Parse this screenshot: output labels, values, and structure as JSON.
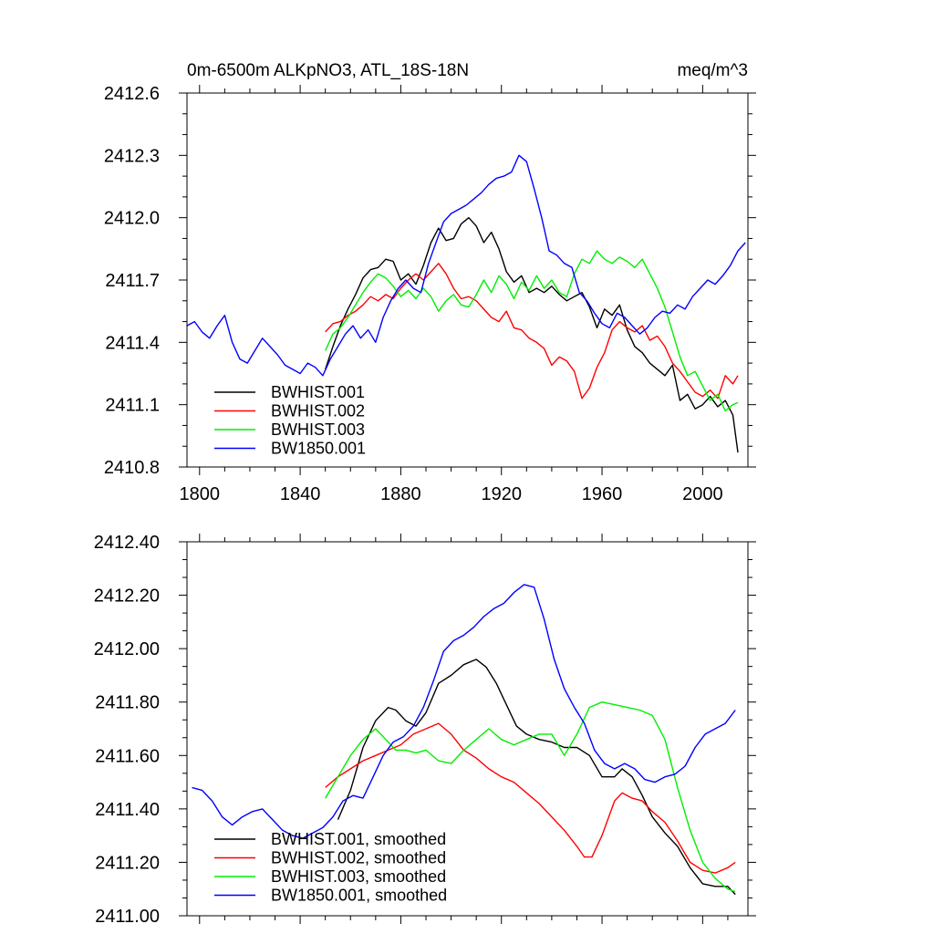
{
  "colors": {
    "BWHIST.001": "#000000",
    "BWHIST.002": "#ff0000",
    "BWHIST.003": "#00ee00",
    "BW1850.001": "#0000ff"
  },
  "chart_data": [
    {
      "type": "line",
      "title": "0m-6500m ALKpNO3, ATL_18S-18N",
      "units": "meq/m^3",
      "xlabel": "",
      "ylabel": "",
      "xlim": [
        1795,
        2018
      ],
      "ylim": [
        2410.8,
        2412.6
      ],
      "xticks": [
        1800,
        1840,
        1880,
        1920,
        1960,
        2000
      ],
      "xtick_labels": [
        "1800",
        "1840",
        "1880",
        "1920",
        "1960",
        "2000"
      ],
      "yticks": [
        2410.8,
        2411.1,
        2411.4,
        2411.7,
        2412.0,
        2412.3,
        2412.6
      ],
      "ytick_labels": [
        "2410.8",
        "2411.1",
        "2411.4",
        "2411.7",
        "2412.0",
        "2412.3",
        "2412.6"
      ],
      "legend": [
        "BWHIST.001",
        "BWHIST.002",
        "BWHIST.003",
        "BW1850.001"
      ],
      "legend_position": "bottom-left",
      "series": [
        {
          "name": "BWHIST.001",
          "x": [
            1850,
            1853,
            1856,
            1859,
            1862,
            1865,
            1868,
            1871,
            1874,
            1877,
            1880,
            1883,
            1886,
            1889,
            1892,
            1895,
            1898,
            1901,
            1904,
            1907,
            1910,
            1913,
            1916,
            1919,
            1922,
            1925,
            1928,
            1931,
            1934,
            1937,
            1940,
            1943,
            1946,
            1949,
            1952,
            1955,
            1958,
            1961,
            1964,
            1967,
            1970,
            1973,
            1976,
            1979,
            1982,
            1985,
            1988,
            1991,
            1994,
            1997,
            2000,
            2003,
            2006,
            2009,
            2012,
            2014
          ],
          "values": [
            2411.27,
            2411.38,
            2411.48,
            2411.56,
            2411.63,
            2411.71,
            2411.75,
            2411.76,
            2411.8,
            2411.79,
            2411.7,
            2411.73,
            2411.68,
            2411.77,
            2411.88,
            2411.95,
            2411.89,
            2411.9,
            2411.97,
            2412.0,
            2411.96,
            2411.88,
            2411.93,
            2411.85,
            2411.74,
            2411.69,
            2411.72,
            2411.64,
            2411.66,
            2411.64,
            2411.67,
            2411.63,
            2411.6,
            2411.62,
            2411.64,
            2411.57,
            2411.47,
            2411.56,
            2411.53,
            2411.58,
            2411.46,
            2411.38,
            2411.35,
            2411.3,
            2411.27,
            2411.24,
            2411.29,
            2411.12,
            2411.15,
            2411.08,
            2411.1,
            2411.14,
            2411.09,
            2411.12,
            2411.05,
            2410.87
          ]
        },
        {
          "name": "BWHIST.002",
          "x": [
            1850,
            1853,
            1856,
            1859,
            1862,
            1865,
            1868,
            1871,
            1874,
            1877,
            1880,
            1883,
            1886,
            1889,
            1892,
            1895,
            1898,
            1901,
            1904,
            1907,
            1910,
            1913,
            1916,
            1919,
            1922,
            1925,
            1928,
            1931,
            1934,
            1937,
            1940,
            1943,
            1946,
            1949,
            1952,
            1955,
            1958,
            1961,
            1964,
            1967,
            1970,
            1973,
            1976,
            1979,
            1982,
            1985,
            1988,
            1991,
            1994,
            1997,
            2000,
            2003,
            2006,
            2009,
            2012,
            2014
          ],
          "values": [
            2411.45,
            2411.49,
            2411.5,
            2411.53,
            2411.55,
            2411.58,
            2411.62,
            2411.6,
            2411.63,
            2411.61,
            2411.66,
            2411.7,
            2411.73,
            2411.7,
            2411.74,
            2411.78,
            2411.73,
            2411.66,
            2411.61,
            2411.62,
            2411.6,
            2411.56,
            2411.52,
            2411.5,
            2411.55,
            2411.47,
            2411.46,
            2411.42,
            2411.4,
            2411.37,
            2411.29,
            2411.33,
            2411.31,
            2411.26,
            2411.13,
            2411.18,
            2411.28,
            2411.35,
            2411.46,
            2411.5,
            2411.47,
            2411.45,
            2411.48,
            2411.41,
            2411.43,
            2411.38,
            2411.3,
            2411.26,
            2411.21,
            2411.16,
            2411.14,
            2411.17,
            2411.13,
            2411.24,
            2411.2,
            2411.24
          ]
        },
        {
          "name": "BWHIST.003",
          "x": [
            1850,
            1853,
            1856,
            1859,
            1862,
            1865,
            1868,
            1871,
            1874,
            1877,
            1880,
            1883,
            1886,
            1889,
            1892,
            1895,
            1898,
            1901,
            1904,
            1907,
            1910,
            1913,
            1916,
            1919,
            1922,
            1925,
            1928,
            1931,
            1934,
            1937,
            1940,
            1943,
            1946,
            1949,
            1952,
            1955,
            1958,
            1961,
            1964,
            1967,
            1970,
            1973,
            1976,
            1979,
            1982,
            1985,
            1988,
            1991,
            1994,
            1997,
            2000,
            2003,
            2006,
            2009,
            2012,
            2014
          ],
          "values": [
            2411.36,
            2411.44,
            2411.47,
            2411.52,
            2411.58,
            2411.64,
            2411.69,
            2411.73,
            2411.71,
            2411.67,
            2411.62,
            2411.65,
            2411.61,
            2411.66,
            2411.62,
            2411.55,
            2411.6,
            2411.63,
            2411.58,
            2411.57,
            2411.63,
            2411.7,
            2411.64,
            2411.72,
            2411.68,
            2411.61,
            2411.69,
            2411.65,
            2411.72,
            2411.66,
            2411.7,
            2411.64,
            2411.62,
            2411.73,
            2411.8,
            2411.78,
            2411.84,
            2411.8,
            2411.78,
            2411.81,
            2411.79,
            2411.76,
            2411.8,
            2411.73,
            2411.66,
            2411.57,
            2411.45,
            2411.33,
            2411.24,
            2411.26,
            2411.19,
            2411.12,
            2411.15,
            2411.07,
            2411.1,
            2411.11
          ]
        },
        {
          "name": "BW1850.001",
          "x": [
            1795,
            1798,
            1801,
            1804,
            1807,
            1810,
            1813,
            1816,
            1819,
            1822,
            1825,
            1828,
            1831,
            1834,
            1837,
            1840,
            1843,
            1846,
            1849,
            1852,
            1855,
            1858,
            1861,
            1864,
            1867,
            1870,
            1873,
            1876,
            1879,
            1882,
            1885,
            1888,
            1891,
            1894,
            1897,
            1900,
            1903,
            1906,
            1909,
            1912,
            1915,
            1918,
            1921,
            1924,
            1927,
            1930,
            1933,
            1936,
            1939,
            1942,
            1945,
            1948,
            1951,
            1954,
            1957,
            1960,
            1963,
            1966,
            1969,
            1972,
            1975,
            1978,
            1981,
            1984,
            1987,
            1990,
            1993,
            1996,
            1999,
            2002,
            2005,
            2008,
            2011,
            2014,
            2017
          ],
          "values": [
            2411.48,
            2411.5,
            2411.45,
            2411.42,
            2411.48,
            2411.53,
            2411.4,
            2411.32,
            2411.3,
            2411.36,
            2411.42,
            2411.38,
            2411.34,
            2411.29,
            2411.27,
            2411.25,
            2411.3,
            2411.28,
            2411.24,
            2411.32,
            2411.38,
            2411.44,
            2411.48,
            2411.42,
            2411.46,
            2411.4,
            2411.52,
            2411.6,
            2411.66,
            2411.7,
            2411.66,
            2411.64,
            2411.78,
            2411.88,
            2411.98,
            2412.02,
            2412.04,
            2412.06,
            2412.09,
            2412.12,
            2412.16,
            2412.19,
            2412.2,
            2412.22,
            2412.3,
            2412.27,
            2412.14,
            2412.0,
            2411.84,
            2411.82,
            2411.78,
            2411.76,
            2411.64,
            2411.6,
            2411.54,
            2411.49,
            2411.47,
            2411.54,
            2411.52,
            2411.48,
            2411.44,
            2411.47,
            2411.52,
            2411.55,
            2411.54,
            2411.58,
            2411.56,
            2411.62,
            2411.66,
            2411.7,
            2411.68,
            2411.72,
            2411.77,
            2411.84,
            2411.88
          ]
        }
      ]
    },
    {
      "type": "line",
      "title": "",
      "xlabel": "",
      "ylabel": "",
      "xlim": [
        1795,
        2018
      ],
      "ylim": [
        2411.0,
        2412.4
      ],
      "xticks": [
        1800,
        1840,
        1880,
        1920,
        1960,
        2000
      ],
      "xtick_labels": [],
      "yticks": [
        2411.0,
        2411.2,
        2411.4,
        2411.6,
        2411.8,
        2412.0,
        2412.2,
        2412.4
      ],
      "ytick_labels": [
        "2411.00",
        "2411.20",
        "2411.40",
        "2411.60",
        "2411.80",
        "2412.00",
        "2412.20",
        "2412.40"
      ],
      "legend": [
        "BWHIST.001, smoothed",
        "BWHIST.002, smoothed",
        "BWHIST.003, smoothed",
        "BW1850.001, smoothed"
      ],
      "legend_position": "bottom-left",
      "series": [
        {
          "name": "BWHIST.001, smoothed",
          "x": [
            1855,
            1860,
            1865,
            1870,
            1875,
            1878,
            1882,
            1886,
            1890,
            1895,
            1900,
            1905,
            1910,
            1914,
            1918,
            1922,
            1926,
            1930,
            1935,
            1940,
            1945,
            1950,
            1955,
            1960,
            1965,
            1968,
            1972,
            1976,
            1980,
            1985,
            1990,
            1995,
            2000,
            2005,
            2010,
            2013
          ],
          "values": [
            2411.36,
            2411.47,
            2411.63,
            2411.73,
            2411.78,
            2411.77,
            2411.73,
            2411.71,
            2411.76,
            2411.87,
            2411.9,
            2411.94,
            2411.96,
            2411.93,
            2411.87,
            2411.79,
            2411.71,
            2411.68,
            2411.66,
            2411.65,
            2411.63,
            2411.63,
            2411.6,
            2411.52,
            2411.52,
            2411.55,
            2411.52,
            2411.45,
            2411.37,
            2411.31,
            2411.26,
            2411.18,
            2411.12,
            2411.11,
            2411.11,
            2411.08
          ]
        },
        {
          "name": "BWHIST.002, smoothed",
          "x": [
            1850,
            1855,
            1860,
            1865,
            1870,
            1875,
            1880,
            1885,
            1890,
            1895,
            1900,
            1905,
            1910,
            1915,
            1920,
            1925,
            1930,
            1935,
            1940,
            1945,
            1950,
            1953,
            1956,
            1960,
            1965,
            1968,
            1972,
            1976,
            1980,
            1985,
            1990,
            1995,
            2000,
            2005,
            2010,
            2013
          ],
          "values": [
            2411.48,
            2411.52,
            2411.55,
            2411.58,
            2411.6,
            2411.62,
            2411.64,
            2411.68,
            2411.7,
            2411.72,
            2411.68,
            2411.62,
            2411.59,
            2411.55,
            2411.52,
            2411.5,
            2411.46,
            2411.42,
            2411.37,
            2411.32,
            2411.26,
            2411.22,
            2411.22,
            2411.3,
            2411.43,
            2411.46,
            2411.44,
            2411.43,
            2411.39,
            2411.35,
            2411.28,
            2411.2,
            2411.17,
            2411.16,
            2411.18,
            2411.2
          ]
        },
        {
          "name": "BWHIST.003, smoothed",
          "x": [
            1850,
            1855,
            1860,
            1865,
            1870,
            1874,
            1878,
            1882,
            1886,
            1890,
            1895,
            1900,
            1905,
            1910,
            1915,
            1920,
            1925,
            1930,
            1935,
            1940,
            1945,
            1950,
            1955,
            1960,
            1965,
            1970,
            1975,
            1980,
            1985,
            1990,
            1995,
            2000,
            2005,
            2010,
            2013
          ],
          "values": [
            2411.44,
            2411.52,
            2411.6,
            2411.66,
            2411.7,
            2411.66,
            2411.62,
            2411.62,
            2411.61,
            2411.62,
            2411.58,
            2411.57,
            2411.62,
            2411.66,
            2411.7,
            2411.66,
            2411.64,
            2411.66,
            2411.68,
            2411.68,
            2411.6,
            2411.68,
            2411.78,
            2411.8,
            2411.79,
            2411.78,
            2411.77,
            2411.75,
            2411.66,
            2411.48,
            2411.32,
            2411.2,
            2411.14,
            2411.1,
            2411.09
          ]
        },
        {
          "name": "BW1850.001, smoothed",
          "x": [
            1797,
            1801,
            1805,
            1809,
            1813,
            1817,
            1821,
            1825,
            1829,
            1833,
            1837,
            1841,
            1845,
            1849,
            1853,
            1857,
            1861,
            1865,
            1869,
            1873,
            1877,
            1881,
            1885,
            1889,
            1893,
            1897,
            1901,
            1905,
            1909,
            1913,
            1917,
            1921,
            1925,
            1929,
            1933,
            1937,
            1941,
            1945,
            1949,
            1953,
            1957,
            1961,
            1965,
            1969,
            1973,
            1977,
            1981,
            1985,
            1989,
            1993,
            1997,
            2001,
            2005,
            2009,
            2013
          ],
          "values": [
            2411.48,
            2411.47,
            2411.43,
            2411.37,
            2411.34,
            2411.37,
            2411.39,
            2411.4,
            2411.36,
            2411.32,
            2411.3,
            2411.29,
            2411.31,
            2411.33,
            2411.37,
            2411.43,
            2411.45,
            2411.44,
            2411.52,
            2411.6,
            2411.65,
            2411.67,
            2411.71,
            2411.78,
            2411.88,
            2411.99,
            2412.03,
            2412.05,
            2412.08,
            2412.12,
            2412.15,
            2412.17,
            2412.21,
            2412.24,
            2412.23,
            2412.11,
            2411.96,
            2411.85,
            2411.78,
            2411.72,
            2411.62,
            2411.57,
            2411.55,
            2411.57,
            2411.55,
            2411.51,
            2411.5,
            2411.52,
            2411.53,
            2411.56,
            2411.63,
            2411.68,
            2411.7,
            2411.72,
            2411.77
          ]
        }
      ]
    }
  ]
}
